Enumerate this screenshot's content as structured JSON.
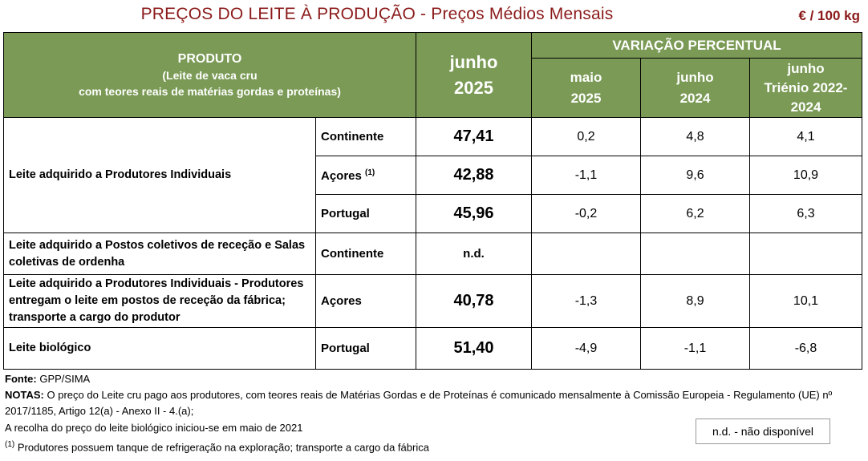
{
  "title": "PREÇOS DO LEITE À PRODUÇÃO - Preços Médios Mensais",
  "unit": "€ / 100 kg",
  "header": {
    "produto_title": "PRODUTO",
    "produto_sub1": "(Leite de vaca cru",
    "produto_sub2": "com teores reais de matérias gordas e proteínas)",
    "current_month": "junho",
    "current_year": "2025",
    "variacao": "VARIAÇÃO PERCENTUAL",
    "col1_line1": "maio",
    "col1_line2": "2025",
    "col2_line1": "junho",
    "col2_line2": "2024",
    "col3_line1": "junho",
    "col3_line2": "Triénio 2022-",
    "col3_line3": "2024"
  },
  "rows": {
    "group1_label": "Leite adquirido a Produtores Individuais",
    "r1": {
      "region": "Continente",
      "value": "47,41",
      "v1": "0,2",
      "v2": "4,8",
      "v3": "4,1"
    },
    "r2": {
      "region": "Açores",
      "sup": "(1)",
      "value": "42,88",
      "v1": "-1,1",
      "v2": "9,6",
      "v3": "10,9"
    },
    "r3": {
      "region": "Portugal",
      "value": "45,96",
      "v1": "-0,2",
      "v2": "6,2",
      "v3": "6,3"
    },
    "r4": {
      "label": "Leite adquirido a Postos coletivos de receção e Salas coletivas de ordenha",
      "region": "Continente",
      "value": "n.d.",
      "v1": "",
      "v2": "",
      "v3": ""
    },
    "r5": {
      "label": "Leite adquirido a Produtores Individuais - Produtores entregam o leite em postos de receção da fábrica; transporte a cargo do produtor",
      "region": "Açores",
      "value": "40,78",
      "v1": "-1,3",
      "v2": "8,9",
      "v3": "10,1"
    },
    "r6": {
      "label": "Leite biológico",
      "region": "Portugal",
      "value": "51,40",
      "v1": "-4,9",
      "v2": "-1,1",
      "v3": "-6,8"
    }
  },
  "notes": {
    "fonte_label": "Fonte:",
    "fonte_value": "GPP/SIMA",
    "notas_label": "NOTAS:",
    "notas_text": "O preço do Leite cru pago aos produtores, com teores reais de Matérias Gordas e de Proteínas é comunicado mensalmente à Comissão Europeia - Regulamento (UE) nº 2017/1185, Artigo 12(a) - Anexo II - 4.(a);",
    "recolha": "A recolha do preço do leite biológico iniciou-se em maio de 2021",
    "footnote_mark": "(1)",
    "footnote_text": "Produtores possuem tanque de refrigeração na exploração; transporte a cargo da fábrica"
  },
  "legend": "n.d. - não disponível"
}
